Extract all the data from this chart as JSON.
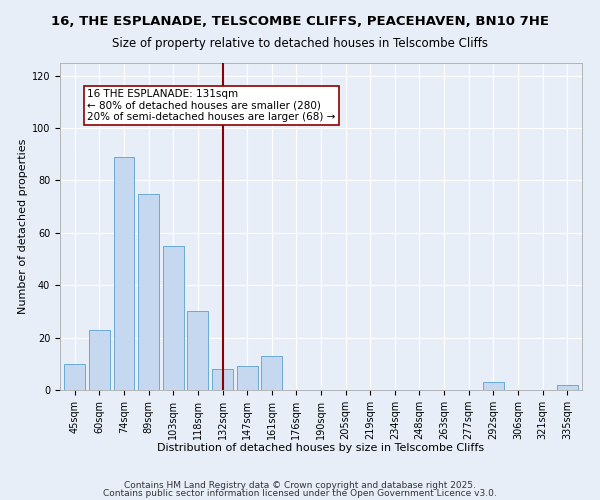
{
  "title": "16, THE ESPLANADE, TELSCOMBE CLIFFS, PEACEHAVEN, BN10 7HE",
  "subtitle": "Size of property relative to detached houses in Telscombe Cliffs",
  "xlabel": "Distribution of detached houses by size in Telscombe Cliffs",
  "ylabel": "Number of detached properties",
  "categories": [
    "45sqm",
    "60sqm",
    "74sqm",
    "89sqm",
    "103sqm",
    "118sqm",
    "132sqm",
    "147sqm",
    "161sqm",
    "176sqm",
    "190sqm",
    "205sqm",
    "219sqm",
    "234sqm",
    "248sqm",
    "263sqm",
    "277sqm",
    "292sqm",
    "306sqm",
    "321sqm",
    "335sqm"
  ],
  "values": [
    10,
    23,
    89,
    75,
    55,
    30,
    8,
    9,
    13,
    0,
    0,
    0,
    0,
    0,
    0,
    0,
    0,
    3,
    0,
    0,
    2
  ],
  "bar_color": "#c5d8f0",
  "bar_edge_color": "#6aaad4",
  "vline_x_index": 6,
  "vline_color": "#8B0000",
  "annotation_lines": [
    "16 THE ESPLANADE: 131sqm",
    "← 80% of detached houses are smaller (280)",
    "20% of semi-detached houses are larger (68) →"
  ],
  "annotation_box_color": "#ffffff",
  "annotation_box_edge": "#8B0000",
  "ylim": [
    0,
    125
  ],
  "yticks": [
    0,
    20,
    40,
    60,
    80,
    100,
    120
  ],
  "footer1": "Contains HM Land Registry data © Crown copyright and database right 2025.",
  "footer2": "Contains public sector information licensed under the Open Government Licence v3.0.",
  "bg_color": "#e8eef8",
  "plot_bg_color": "#e8eef8",
  "grid_color": "#ffffff",
  "title_fontsize": 9.5,
  "subtitle_fontsize": 8.5,
  "axis_label_fontsize": 8,
  "tick_fontsize": 7,
  "annotation_fontsize": 7.5,
  "footer_fontsize": 6.5
}
